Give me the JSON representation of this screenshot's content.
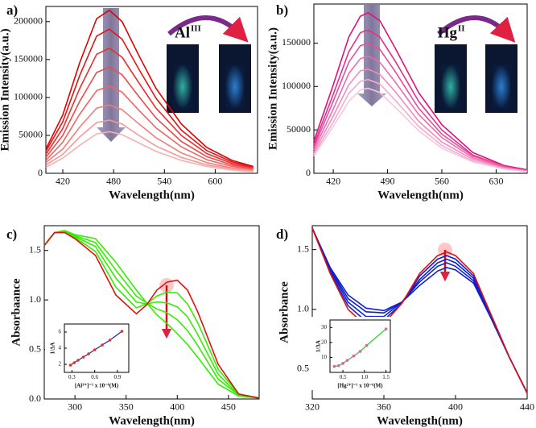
{
  "chart_data": [
    {
      "type": "line",
      "panel_label": "a)",
      "x_label": "Wavelength(nm)",
      "y_label": "Emission Intensity(a.u.)",
      "ion": "Al",
      "ion_charge": "III",
      "x": [
        400,
        420,
        440,
        460,
        475,
        490,
        510,
        530,
        560,
        590,
        620,
        645
      ],
      "xlim": [
        400,
        650
      ],
      "xticks": [
        420,
        480,
        540,
        600
      ],
      "ylim": [
        0,
        220000
      ],
      "yticks": [
        0,
        50000,
        100000,
        150000,
        200000
      ],
      "series": [
        {
          "color": "#e00000",
          "values": [
            32000,
            77000,
            146000,
            204000,
            215000,
            200000,
            155000,
            112000,
            65000,
            34000,
            17000,
            9000
          ]
        },
        {
          "color": "#e41515",
          "values": [
            29000,
            68000,
            129000,
            181000,
            190000,
            177000,
            137000,
            99000,
            57000,
            30000,
            15000,
            8000
          ]
        },
        {
          "color": "#e83030",
          "values": [
            25000,
            59000,
            112000,
            157000,
            165000,
            153000,
            119000,
            86000,
            50000,
            26000,
            13000,
            7000
          ]
        },
        {
          "color": "#ec4a4a",
          "values": [
            21000,
            50000,
            95000,
            133000,
            140000,
            130000,
            101000,
            73000,
            42000,
            22000,
            11000,
            6000
          ]
        },
        {
          "color": "#ef6464",
          "values": [
            17000,
            41000,
            78000,
            109000,
            115000,
            107000,
            83000,
            60000,
            35000,
            18000,
            9000,
            5000
          ]
        },
        {
          "color": "#f27e7e",
          "values": [
            14000,
            32000,
            61000,
            86000,
            90000,
            84000,
            65000,
            47000,
            27000,
            14000,
            7000,
            4000
          ]
        },
        {
          "color": "#f59898",
          "values": [
            11000,
            25000,
            48000,
            67000,
            70000,
            65000,
            50000,
            36000,
            21000,
            11000,
            6000,
            3000
          ]
        },
        {
          "color": "#f8b0b0",
          "values": [
            8000,
            20000,
            37000,
            52000,
            55000,
            51000,
            40000,
            29000,
            17000,
            9000,
            4000,
            2000
          ]
        }
      ]
    },
    {
      "type": "line",
      "panel_label": "b)",
      "x_label": "Wavelength(nm)",
      "y_label": "Emission Intensity(a.u.)",
      "ion": "Hg",
      "ion_charge": "II",
      "x": [
        395,
        420,
        440,
        455,
        465,
        480,
        500,
        530,
        560,
        600,
        640,
        670
      ],
      "xlim": [
        395,
        670
      ],
      "xticks": [
        420,
        490,
        560,
        630
      ],
      "ylim": [
        0,
        195000
      ],
      "yticks": [
        0,
        50000,
        100000,
        150000
      ],
      "series": [
        {
          "color": "#e0107a",
          "values": [
            37000,
            102000,
            157000,
            181000,
            185000,
            176000,
            144000,
            93000,
            56000,
            24000,
            9000,
            4000
          ]
        },
        {
          "color": "#e42f8b",
          "values": [
            33000,
            91000,
            140000,
            162000,
            165000,
            157000,
            129000,
            83000,
            50000,
            21000,
            8000,
            3000
          ]
        },
        {
          "color": "#e84e9c",
          "values": [
            30000,
            83000,
            128000,
            147000,
            150000,
            143000,
            117000,
            75000,
            45000,
            20000,
            8000,
            3000
          ]
        },
        {
          "color": "#ec6dad",
          "values": [
            27000,
            74000,
            115000,
            132000,
            135000,
            128000,
            105000,
            68000,
            41000,
            18000,
            7000,
            3000
          ]
        },
        {
          "color": "#f08cbe",
          "values": [
            24000,
            66000,
            102000,
            118000,
            120000,
            114000,
            94000,
            60000,
            36000,
            16000,
            6000,
            2000
          ]
        },
        {
          "color": "#f4abcf",
          "values": [
            22000,
            59000,
            92000,
            106000,
            108000,
            103000,
            84000,
            54000,
            32000,
            14000,
            5000,
            2000
          ]
        },
        {
          "color": "#f8c6de",
          "values": [
            20000,
            54000,
            83000,
            96000,
            98000,
            93000,
            76000,
            49000,
            29000,
            13000,
            5000,
            2000
          ]
        }
      ]
    },
    {
      "type": "line",
      "panel_label": "c)",
      "x_label": "Wavelength(nm)",
      "y_label": "Absorbaance",
      "x": [
        270,
        280,
        290,
        300,
        320,
        340,
        360,
        370,
        380,
        390,
        400,
        410,
        420,
        440,
        460,
        480
      ],
      "xlim": [
        270,
        480
      ],
      "xticks": [
        300,
        350,
        400,
        450
      ],
      "ylim": [
        0,
        1.75
      ],
      "yticks": [
        {
          "value": 0,
          "label": "0.0"
        },
        0.5,
        {
          "value": 1,
          "label": "1.0"
        },
        1.5
      ],
      "series": [
        {
          "color": "#33ee00",
          "values": [
            1.55,
            1.68,
            1.7,
            1.66,
            1.62,
            1.38,
            1.1,
            0.97,
            0.85,
            0.76,
            0.66,
            0.55,
            0.42,
            0.15,
            0.03,
            0.01
          ]
        },
        {
          "color": "#33ee00",
          "values": [
            1.55,
            1.68,
            1.7,
            1.65,
            1.58,
            1.3,
            1.04,
            0.97,
            0.91,
            0.87,
            0.8,
            0.69,
            0.54,
            0.2,
            0.04,
            0.01
          ]
        },
        {
          "color": "#33ee00",
          "values": [
            1.55,
            1.68,
            1.69,
            1.64,
            1.54,
            1.22,
            0.98,
            0.96,
            0.98,
            0.97,
            0.93,
            0.83,
            0.65,
            0.25,
            0.04,
            0.01
          ]
        },
        {
          "color": "#33ee00",
          "values": [
            1.55,
            1.68,
            1.69,
            1.63,
            1.49,
            1.13,
            0.92,
            0.96,
            1.04,
            1.08,
            1.07,
            0.96,
            0.77,
            0.3,
            0.05,
            0.01
          ]
        },
        {
          "color": "#e01010",
          "values": [
            1.55,
            1.68,
            1.68,
            1.62,
            1.45,
            1.05,
            0.86,
            0.95,
            1.1,
            1.18,
            1.2,
            1.1,
            0.88,
            0.35,
            0.05,
            0.01
          ]
        }
      ],
      "inset": {
        "type": "line",
        "x_label": "[Al³⁺]⁻¹ x 10⁻⁶(M)",
        "y_label": "1/ΔA",
        "color": "#1a2fa0",
        "marker_color": "#e03030",
        "x": [
          0.28,
          0.33,
          0.38,
          0.45,
          0.52,
          0.6,
          0.7,
          0.8,
          0.96
        ],
        "values": [
          1.9,
          2.2,
          2.5,
          2.9,
          3.3,
          3.8,
          4.4,
          5.0,
          6.1
        ],
        "xlim": [
          0.2,
          1.05
        ],
        "xticks": [
          0.3,
          0.6,
          0.9
        ],
        "ylim": [
          1,
          7
        ],
        "yticks": [
          2,
          4,
          6
        ]
      }
    },
    {
      "type": "line",
      "panel_label": "d)",
      "x_label": "Wavelength(nm)",
      "y_label": "Absorbance",
      "x": [
        320,
        330,
        340,
        350,
        360,
        370,
        380,
        390,
        395,
        400,
        410,
        420,
        430,
        440
      ],
      "xlim": [
        320,
        440
      ],
      "xticks": [
        320,
        360,
        400,
        440
      ],
      "ylim": [
        0.25,
        1.7
      ],
      "yticks": [
        0.5,
        {
          "value": 1,
          "label": "1.0"
        },
        1.5
      ],
      "series": [
        {
          "color": "#1020d0",
          "values": [
            1.68,
            1.35,
            1.12,
            1.01,
            0.99,
            1.06,
            1.2,
            1.32,
            1.35,
            1.33,
            1.22,
            0.92,
            0.6,
            0.3
          ]
        },
        {
          "color": "#1020d0",
          "values": [
            1.68,
            1.34,
            1.09,
            0.98,
            0.97,
            1.06,
            1.23,
            1.36,
            1.39,
            1.36,
            1.24,
            0.93,
            0.6,
            0.3
          ]
        },
        {
          "color": "#1020d0",
          "values": [
            1.68,
            1.33,
            1.06,
            0.94,
            0.94,
            1.06,
            1.25,
            1.39,
            1.42,
            1.39,
            1.26,
            0.94,
            0.6,
            0.3
          ]
        },
        {
          "color": "#1020d0",
          "values": [
            1.68,
            1.31,
            1.03,
            0.9,
            0.91,
            1.05,
            1.28,
            1.42,
            1.45,
            1.42,
            1.28,
            0.95,
            0.6,
            0.3
          ]
        },
        {
          "color": "#e01010",
          "values": [
            1.68,
            1.3,
            1.0,
            0.86,
            0.88,
            1.05,
            1.3,
            1.45,
            1.48,
            1.45,
            1.3,
            0.95,
            0.6,
            0.3
          ]
        }
      ],
      "inset": {
        "type": "line",
        "x_label": "[Hg²⁺]⁻¹ x 10⁻⁶(M)",
        "y_label": "1/ΔA",
        "color": "#30d030",
        "marker_color": "#e060a0",
        "x": [
          0.3,
          0.4,
          0.5,
          0.6,
          0.75,
          0.9,
          1.05,
          1.5
        ],
        "values": [
          4,
          4.5,
          6,
          8,
          11,
          14,
          18,
          29
        ],
        "xlim": [
          0.2,
          1.6
        ],
        "xticks": [
          0.5,
          {
            "value": 1,
            "label": "1.0"
          },
          1.5
        ],
        "ylim": [
          0,
          35
        ],
        "yticks": [
          10,
          20,
          30
        ]
      }
    }
  ]
}
